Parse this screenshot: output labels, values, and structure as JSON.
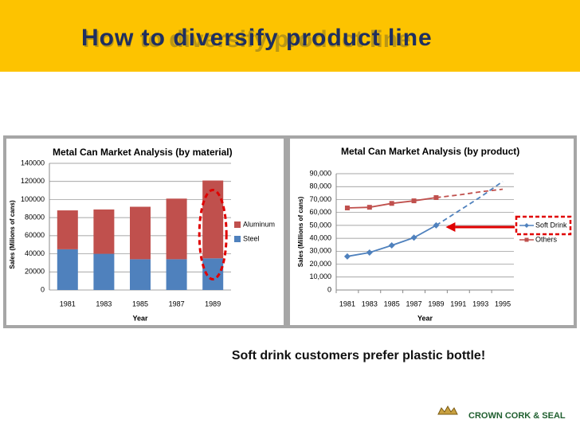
{
  "title": "How to diversify product line",
  "caption": "Soft drink customers prefer plastic bottle!",
  "logo": "CROWN CORK & SEAL",
  "chart_data": [
    {
      "type": "stacked_bar",
      "title": "Metal Can Market Analysis (by material)",
      "xlabel": "Year",
      "ylabel": "Sales (Milions of cans)",
      "categories": [
        "1981",
        "1983",
        "1985",
        "1987",
        "1989"
      ],
      "series": [
        {
          "name": "Steel",
          "color": "#4f81bd",
          "values": [
            45000,
            40000,
            34000,
            34000,
            35000
          ]
        },
        {
          "name": "Aluminum",
          "color": "#c0504d",
          "values": [
            43000,
            49000,
            58000,
            67000,
            86000
          ]
        }
      ],
      "ylim": [
        0,
        140000
      ],
      "yticks": [
        0,
        20000,
        40000,
        60000,
        80000,
        100000,
        120000,
        140000
      ],
      "grid": true,
      "legend": "right"
    },
    {
      "type": "line",
      "title": "Metal Can Market Analysis (by product)",
      "xlabel": "Year",
      "ylabel": "Sales (Millions of cans)",
      "categories": [
        "1981",
        "1983",
        "1985",
        "1987",
        "1989",
        "1991",
        "1993",
        "1995"
      ],
      "series": [
        {
          "name": "Soft Drink",
          "color": "#4f81bd",
          "marker": "diamond",
          "values": [
            26000,
            29000,
            34500,
            40500,
            50000,
            null,
            null,
            null
          ],
          "projected_values": [
            null,
            null,
            null,
            null,
            50000,
            61000,
            72000,
            84000
          ]
        },
        {
          "name": "Others",
          "color": "#c0504d",
          "marker": "square",
          "values": [
            63500,
            64000,
            67000,
            69000,
            71500,
            null,
            null,
            null
          ],
          "projected_values": [
            null,
            null,
            null,
            null,
            71500,
            73500,
            76000,
            78000
          ]
        }
      ],
      "ylim": [
        0,
        90000
      ],
      "yticks": [
        0,
        {
          "value": 10000,
          "label": "10,000"
        },
        {
          "value": 20000,
          "label": "20,000"
        },
        {
          "value": 30000,
          "label": "30,000"
        },
        {
          "value": 40000,
          "label": "40,000"
        },
        {
          "value": 50000,
          "label": "50,000"
        },
        {
          "value": 60000,
          "label": "60,000"
        },
        {
          "value": 70000,
          "label": "70,000"
        },
        {
          "value": 80000,
          "label": "80,000"
        },
        {
          "value": 90000,
          "label": "90,000"
        }
      ],
      "grid": true,
      "legend": "right"
    }
  ]
}
